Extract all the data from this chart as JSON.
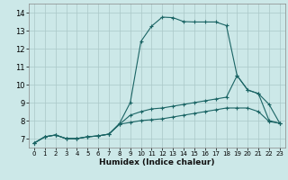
{
  "xlabel": "Humidex (Indice chaleur)",
  "bg_color": "#cce8e8",
  "grid_color": "#aac8c8",
  "line_color": "#1a6464",
  "xlim": [
    -0.5,
    23.5
  ],
  "ylim": [
    6.5,
    14.5
  ],
  "yticks": [
    7,
    8,
    9,
    10,
    11,
    12,
    13,
    14
  ],
  "xticks": [
    0,
    1,
    2,
    3,
    4,
    5,
    6,
    7,
    8,
    9,
    10,
    11,
    12,
    13,
    14,
    15,
    16,
    17,
    18,
    19,
    20,
    21,
    22,
    23
  ],
  "line1_x": [
    0,
    1,
    2,
    3,
    4,
    5,
    6,
    7,
    8,
    9,
    10,
    11,
    12,
    13,
    14,
    15,
    16,
    17,
    18,
    19,
    20,
    21,
    22,
    23
  ],
  "line1_y": [
    6.75,
    7.1,
    7.2,
    7.0,
    7.0,
    7.1,
    7.15,
    7.25,
    7.85,
    9.0,
    12.4,
    13.25,
    13.75,
    13.72,
    13.5,
    13.48,
    13.48,
    13.48,
    13.28,
    10.5,
    9.7,
    9.5,
    8.0,
    7.85
  ],
  "line2_x": [
    0,
    1,
    2,
    3,
    4,
    5,
    6,
    7,
    8,
    9,
    10,
    11,
    12,
    13,
    14,
    15,
    16,
    17,
    18,
    19,
    20,
    21,
    22,
    23
  ],
  "line2_y": [
    6.75,
    7.1,
    7.2,
    7.0,
    7.0,
    7.1,
    7.15,
    7.25,
    7.8,
    8.3,
    8.5,
    8.65,
    8.7,
    8.8,
    8.9,
    9.0,
    9.1,
    9.2,
    9.3,
    10.5,
    9.7,
    9.5,
    8.9,
    7.85
  ],
  "line3_x": [
    0,
    1,
    2,
    3,
    4,
    5,
    6,
    7,
    8,
    9,
    10,
    11,
    12,
    13,
    14,
    15,
    16,
    17,
    18,
    19,
    20,
    21,
    22,
    23
  ],
  "line3_y": [
    6.75,
    7.1,
    7.2,
    7.0,
    7.0,
    7.1,
    7.15,
    7.25,
    7.8,
    7.9,
    8.0,
    8.05,
    8.1,
    8.2,
    8.3,
    8.4,
    8.5,
    8.6,
    8.7,
    8.7,
    8.7,
    8.5,
    7.95,
    7.85
  ]
}
